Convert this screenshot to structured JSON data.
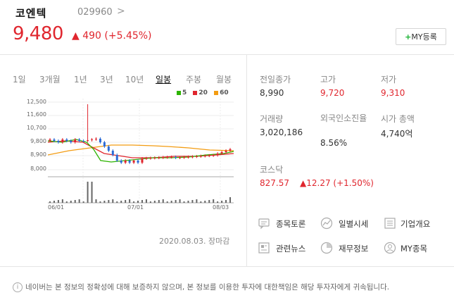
{
  "stock": {
    "name": "코엔텍",
    "code": "029960",
    "chevron": ">",
    "price": "9,480",
    "change": "▲ 490 (+5.45%)",
    "my_button": "MY등록",
    "my_button_plus": "+"
  },
  "tabs": [
    "1일",
    "3개월",
    "1년",
    "3년",
    "10년",
    "일봉",
    "주봉",
    "월봉"
  ],
  "active_tab": "일봉",
  "legend": [
    {
      "label": "5",
      "color": "#2db400"
    },
    {
      "label": "20",
      "color": "#e0262e"
    },
    {
      "label": "60",
      "color": "#f39c12"
    }
  ],
  "chart_data": {
    "type": "candlestick",
    "y_ticks": [
      "12,500",
      "11,600",
      "10,700",
      "9,800",
      "8,900",
      "8,000"
    ],
    "ylim": [
      8000,
      12500
    ],
    "x_ticks": [
      "06/01",
      "07/01",
      "08/03"
    ],
    "series": [
      {
        "name": "5",
        "color": "#2db400"
      },
      {
        "name": "20",
        "color": "#e0262e"
      },
      {
        "name": "60",
        "color": "#f39c12"
      }
    ]
  },
  "updated": "2020.08.03. 장마감",
  "stats": [
    {
      "label": "전일종가",
      "value": "8,990",
      "red": false
    },
    {
      "label": "고가",
      "value": "9,720",
      "red": true
    },
    {
      "label": "저가",
      "value": "9,310",
      "red": true
    },
    {
      "label": "거래량",
      "value": "3,020,186",
      "red": false
    },
    {
      "label": "외국인소진율",
      "value": "8.56%",
      "red": false
    },
    {
      "label": "시가 총액",
      "value": "4,740억",
      "red": false
    }
  ],
  "index": {
    "label": "코스닥",
    "value": "827.57",
    "change": "▲12.27 (+1.50%)"
  },
  "links": [
    {
      "label": "종목토론",
      "icon": "chat-icon"
    },
    {
      "label": "일별시세",
      "icon": "trend-icon"
    },
    {
      "label": "기업개요",
      "icon": "list-icon"
    },
    {
      "label": "관련뉴스",
      "icon": "news-icon"
    },
    {
      "label": "재무정보",
      "icon": "pie-icon"
    },
    {
      "label": "MY종목",
      "icon": "person-icon"
    }
  ],
  "footer": "네이버는 본 정보의 정확성에 대해 보증하지 않으며, 본 정보를 이용한 투자에 대한책임은 해당 투자자에게 귀속됩니다.",
  "footer_icon": "i"
}
